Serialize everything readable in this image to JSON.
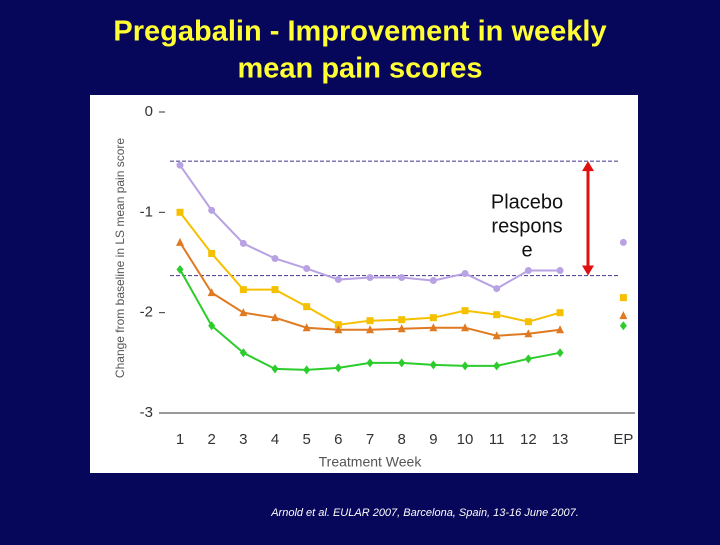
{
  "chart_data": {
    "type": "line",
    "title": [
      "Pregabalin - Improvement in weekly",
      "mean pain scores"
    ],
    "y_label": "Change from baseline in LS mean pain score",
    "x_label": "Treatment Week",
    "categories": [
      "1",
      "2",
      "3",
      "4",
      "5",
      "6",
      "7",
      "8",
      "9",
      "10",
      "11",
      "12",
      "13",
      null,
      "EP"
    ],
    "ylim": [
      -3,
      0
    ],
    "yticks": [
      0,
      -1,
      -2,
      -3
    ],
    "series": [
      {
        "color": "#b8a2e3",
        "marker": "circle",
        "values": [
          -0.53,
          -0.98,
          -1.31,
          -1.46,
          -1.56,
          -1.67,
          -1.65,
          -1.65,
          -1.68,
          -1.61,
          -1.76,
          -1.58,
          -1.58,
          null,
          -1.3
        ]
      },
      {
        "color": "#f5c000",
        "marker": "square",
        "values": [
          -1.0,
          -1.41,
          -1.77,
          -1.77,
          -1.94,
          -2.12,
          -2.08,
          -2.07,
          -2.05,
          -1.98,
          -2.02,
          -2.09,
          -2.0,
          null,
          -1.85
        ]
      },
      {
        "color": "#e07a22",
        "marker": "triangle",
        "values": [
          -1.3,
          -1.8,
          -2.0,
          -2.05,
          -2.15,
          -2.17,
          -2.17,
          -2.16,
          -2.15,
          -2.15,
          -2.23,
          -2.21,
          -2.17,
          null,
          -2.03
        ]
      },
      {
        "color": "#2ccc2c",
        "marker": "diamond",
        "values": [
          -1.57,
          -2.13,
          -2.4,
          -2.56,
          -2.57,
          -2.55,
          -2.5,
          -2.5,
          -2.52,
          -2.53,
          -2.53,
          -2.46,
          -2.4,
          null,
          -2.13
        ]
      }
    ],
    "reference_lines": [
      -0.49,
      -1.63
    ],
    "annotation": [
      "Placebo",
      "respons",
      "e"
    ],
    "citation": "Arnold et al. EULAR 2007, Barcelona, Spain, 13-16 June 2007."
  }
}
